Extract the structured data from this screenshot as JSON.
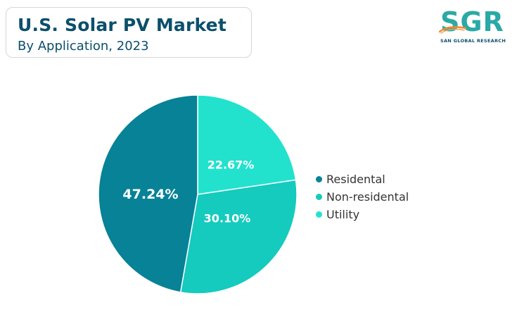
{
  "header": {
    "title": "U.S. Solar PV Market",
    "subtitle": "By Application, 2023"
  },
  "logo": {
    "letters": "SGR",
    "caption": "SAN GLOBAL RESEARCH"
  },
  "colors": {
    "title": "#0b4f6c",
    "slice_border": "#ffffff"
  },
  "chart_data": {
    "type": "pie",
    "title": "U.S. Solar PV Market",
    "subtitle": "By Application, 2023",
    "slices": [
      {
        "name": "Residental",
        "value": 47.24,
        "label": "47.24%",
        "color": "#078297"
      },
      {
        "name": "Non-residental",
        "value": 30.1,
        "label": "30.10%",
        "color": "#14cbbe"
      },
      {
        "name": "Utility",
        "value": 22.67,
        "label": "22.67%",
        "color": "#22e2cd"
      }
    ],
    "legend_position": "right"
  }
}
